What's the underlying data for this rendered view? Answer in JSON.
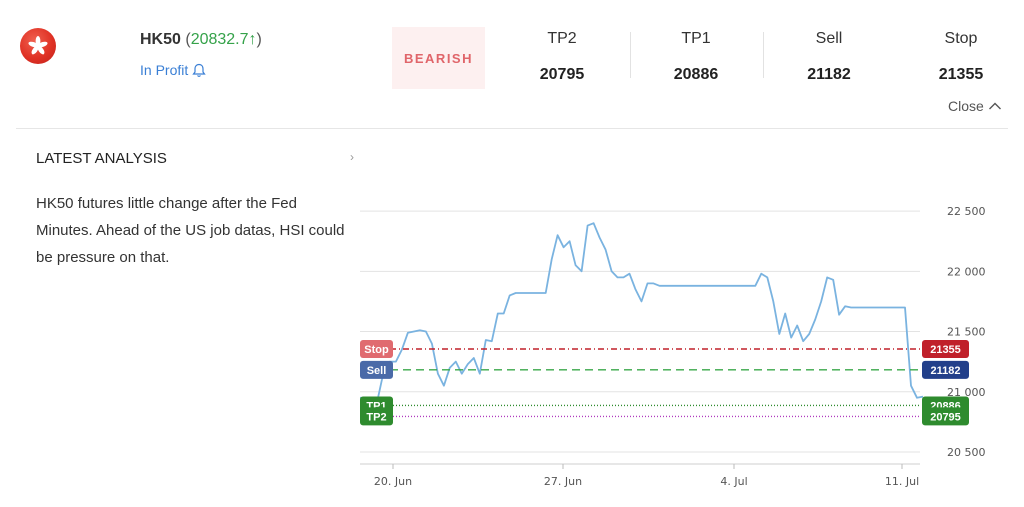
{
  "instrument": {
    "symbol": "HK50",
    "price_text": "20832.7",
    "arrow": "↑",
    "status": "In Profit",
    "flag_colors": {
      "bg": "#e03225",
      "flower": "#ffffff"
    }
  },
  "signal": {
    "direction": "BEARISH"
  },
  "levels": [
    {
      "label": "TP2",
      "value": "20795"
    },
    {
      "label": "TP1",
      "value": "20886"
    },
    {
      "label": "Sell",
      "value": "21182"
    },
    {
      "label": "Stop",
      "value": "21355"
    }
  ],
  "close_label": "Close",
  "analysis": {
    "heading": "LATEST ANALYSIS",
    "text": "HK50 futures little change after the Fed Minutes. Ahead of the US job datas, HSI could be pressure on that."
  },
  "chart_data": {
    "type": "line",
    "xlabel": "",
    "ylabel": "",
    "x_tick_labels": [
      "20. Jun",
      "27. Jun",
      "4. Jul",
      "11. Jul"
    ],
    "y_tick_labels": [
      "22 500",
      "22 000",
      "21 500",
      "21 000",
      "20 500"
    ],
    "y_ticks": [
      22500,
      22000,
      21500,
      21000,
      20500
    ],
    "ylim": [
      20400,
      22800
    ],
    "grid": true,
    "colors": {
      "line": "#7ab3e0",
      "stop": "#c0202a",
      "sell": "#223f8a",
      "tp1": "#2e8b2e",
      "tp2": "#2e8b2e"
    },
    "series": [
      {
        "values": [
          20950,
          20950,
          20950,
          20950,
          21180,
          21250,
          21250,
          21350,
          21490,
          21500,
          21510,
          21500,
          21400,
          21150,
          21050,
          21200,
          21250,
          21150,
          21230,
          21280,
          21150,
          21430,
          21420,
          21650,
          21650,
          21800,
          21820,
          21820,
          21820,
          21820,
          21820,
          21820,
          22100,
          22300,
          22200,
          22250,
          22050,
          22000,
          22380,
          22400,
          22280,
          22180,
          22000,
          21950,
          21950,
          21980,
          21850,
          21750,
          21900,
          21900,
          21880,
          21880,
          21880,
          21880,
          21880,
          21880,
          21880,
          21880,
          21880,
          21880,
          21880,
          21880,
          21880,
          21880,
          21880,
          21880,
          21880,
          21980,
          21950,
          21750,
          21480,
          21650,
          21450,
          21550,
          21420,
          21480,
          21600,
          21750,
          21950,
          21930,
          21640,
          21710,
          21700,
          21700,
          21700,
          21700,
          21700,
          21700,
          21700,
          21700,
          21700,
          21700,
          21050,
          20950,
          20960
        ]
      }
    ],
    "levels": [
      {
        "name": "Stop",
        "value": 21355
      },
      {
        "name": "Sell",
        "value": 21182
      },
      {
        "name": "TP1",
        "value": 20886
      },
      {
        "name": "TP2",
        "value": 20795
      }
    ]
  }
}
